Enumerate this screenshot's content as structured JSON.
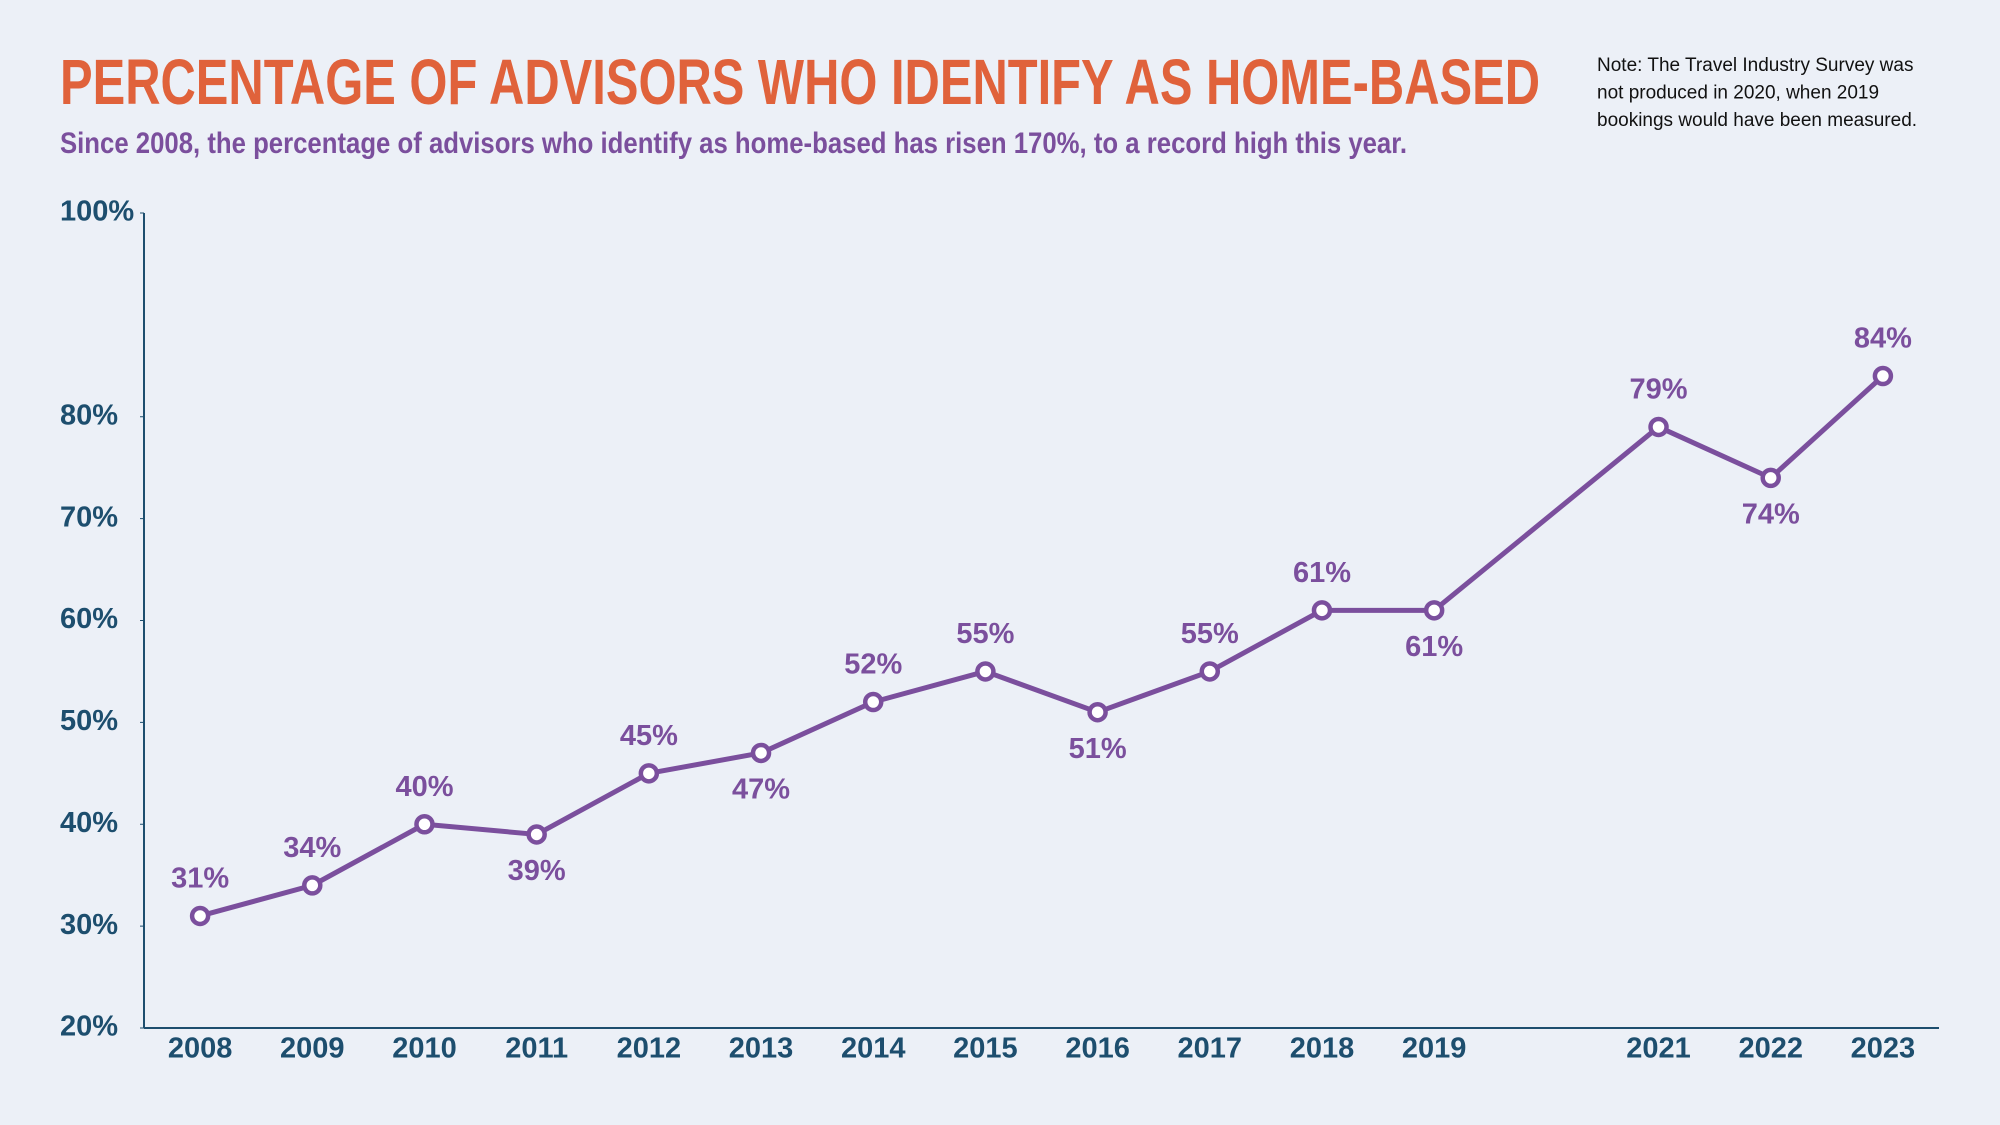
{
  "chart_data": {
    "type": "line",
    "title": "PERCENTAGE OF ADVISORS WHO IDENTIFY AS HOME-BASED",
    "subtitle": "Since 2008, the percentage of advisors who identify as home-based has risen 170%, to a record high this year.",
    "note": [
      "Note: The Travel Industry Survey was",
      "not produced in 2020, when 2019",
      "bookings would have been measured."
    ],
    "x": [
      2008,
      2009,
      2010,
      2011,
      2012,
      2013,
      2014,
      2015,
      2016,
      2017,
      2018,
      2019,
      2021,
      2022,
      2023
    ],
    "values": [
      31,
      34,
      40,
      39,
      45,
      47,
      52,
      55,
      51,
      55,
      61,
      61,
      79,
      74,
      84
    ],
    "value_labels": [
      "31%",
      "34%",
      "40%",
      "39%",
      "45%",
      "47%",
      "52%",
      "55%",
      "51%",
      "55%",
      "61%",
      "61%",
      "79%",
      "74%",
      "84%"
    ],
    "color": "#7b4f9d",
    "xlim": [
      2007.5,
      2023.5
    ],
    "xticks": [
      2008,
      2009,
      2010,
      2011,
      2012,
      2013,
      2014,
      2015,
      2016,
      2017,
      2018,
      2019,
      2021,
      2022,
      2023
    ],
    "ylim": [
      20,
      100
    ],
    "yticks": [
      {
        "value": 20,
        "label": "20%"
      },
      {
        "value": 30,
        "label": "30%"
      },
      {
        "value": 40,
        "label": "40%"
      },
      {
        "value": 50,
        "label": "50%"
      },
      {
        "value": 60,
        "label": "60%"
      },
      {
        "value": 70,
        "label": "70%"
      },
      {
        "value": 80,
        "label": "80%"
      },
      {
        "value": 100,
        "label": "100%"
      }
    ],
    "grid": false
  }
}
